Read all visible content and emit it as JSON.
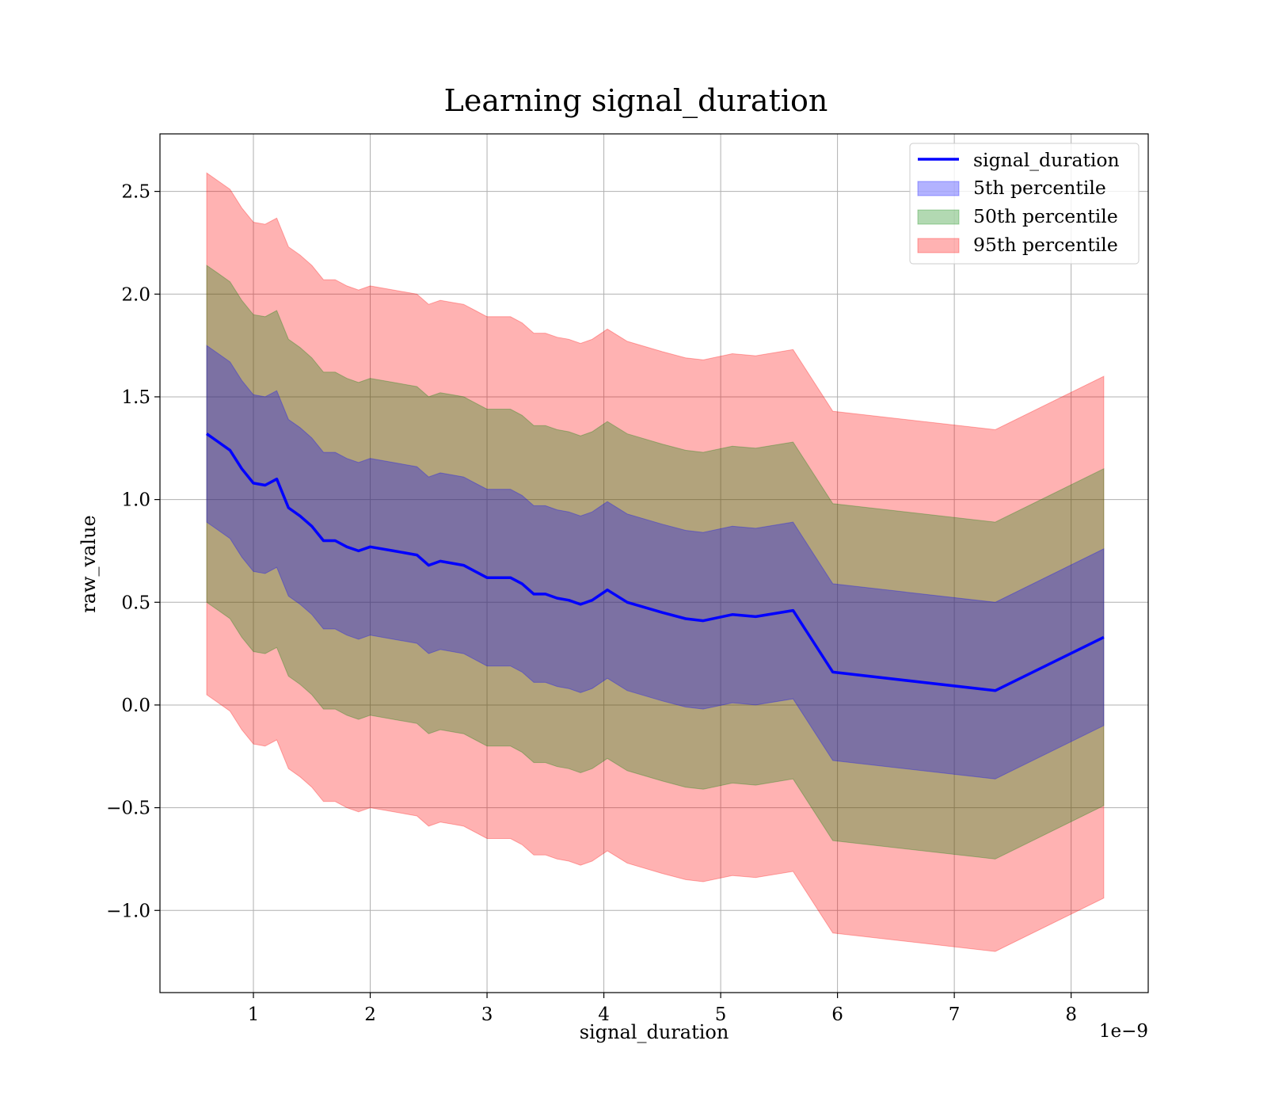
{
  "chart_data": {
    "type": "area",
    "title": "Learning signal_duration",
    "xlabel": "signal_duration",
    "ylabel": "raw_value",
    "x_offset_label": "1e−9",
    "xlim": [
      0.2,
      8.66
    ],
    "ylim": [
      -1.4,
      2.78
    ],
    "x_ticks": [
      1,
      2,
      3,
      4,
      5,
      6,
      7,
      8
    ],
    "x_tick_labels": [
      "1",
      "2",
      "3",
      "4",
      "5",
      "6",
      "7",
      "8"
    ],
    "y_ticks": [
      -1.0,
      -0.5,
      0.0,
      0.5,
      1.0,
      1.5,
      2.0,
      2.5
    ],
    "y_tick_labels": [
      "−1.0",
      "−0.5",
      "0.0",
      "0.5",
      "1.0",
      "1.5",
      "2.0",
      "2.5"
    ],
    "grid": true,
    "legend_position": "top-right",
    "colors": {
      "line": "#0000ff",
      "band_5th": "#0000ff",
      "band_50th": "#008000",
      "band_95th": "#ff0000"
    },
    "x": [
      0.6,
      0.7,
      0.8,
      0.9,
      1.0,
      1.1,
      1.2,
      1.3,
      1.4,
      1.5,
      1.6,
      1.7,
      1.8,
      1.9,
      2.0,
      2.2,
      2.4,
      2.5,
      2.6,
      2.7,
      2.8,
      2.9,
      3.0,
      3.2,
      3.3,
      3.4,
      3.5,
      3.6,
      3.7,
      3.8,
      3.9,
      4.03,
      4.2,
      4.5,
      4.7,
      4.85,
      5.1,
      5.3,
      5.62,
      5.96,
      7.35,
      8.28
    ],
    "series": [
      {
        "name": "signal_duration",
        "kind": "line",
        "values": [
          1.32,
          1.28,
          1.24,
          1.15,
          1.08,
          1.07,
          1.1,
          0.96,
          0.92,
          0.87,
          0.8,
          0.8,
          0.77,
          0.75,
          0.77,
          0.75,
          0.73,
          0.68,
          0.7,
          0.69,
          0.68,
          0.65,
          0.62,
          0.62,
          0.59,
          0.54,
          0.54,
          0.52,
          0.51,
          0.49,
          0.51,
          0.56,
          0.5,
          0.45,
          0.42,
          0.41,
          0.44,
          0.43,
          0.46,
          0.16,
          0.07,
          0.33
        ]
      },
      {
        "name": "5th percentile",
        "kind": "band",
        "half_width": [
          0.43,
          0.43,
          0.43,
          0.43,
          0.43,
          0.43,
          0.43,
          0.43,
          0.43,
          0.43,
          0.43,
          0.43,
          0.43,
          0.43,
          0.43,
          0.43,
          0.43,
          0.43,
          0.43,
          0.43,
          0.43,
          0.43,
          0.43,
          0.43,
          0.43,
          0.43,
          0.43,
          0.43,
          0.43,
          0.43,
          0.43,
          0.43,
          0.43,
          0.43,
          0.43,
          0.43,
          0.43,
          0.43,
          0.43,
          0.43,
          0.43,
          0.43
        ]
      },
      {
        "name": "50th percentile",
        "kind": "band",
        "half_width": [
          0.82,
          0.82,
          0.82,
          0.82,
          0.82,
          0.82,
          0.82,
          0.82,
          0.82,
          0.82,
          0.82,
          0.82,
          0.82,
          0.82,
          0.82,
          0.82,
          0.82,
          0.82,
          0.82,
          0.82,
          0.82,
          0.82,
          0.82,
          0.82,
          0.82,
          0.82,
          0.82,
          0.82,
          0.82,
          0.82,
          0.82,
          0.82,
          0.82,
          0.82,
          0.82,
          0.82,
          0.82,
          0.82,
          0.82,
          0.82,
          0.82,
          0.82
        ]
      },
      {
        "name": "95th percentile",
        "kind": "band",
        "half_width": [
          1.27,
          1.27,
          1.27,
          1.27,
          1.27,
          1.27,
          1.27,
          1.27,
          1.27,
          1.27,
          1.27,
          1.27,
          1.27,
          1.27,
          1.27,
          1.27,
          1.27,
          1.27,
          1.27,
          1.27,
          1.27,
          1.27,
          1.27,
          1.27,
          1.27,
          1.27,
          1.27,
          1.27,
          1.27,
          1.27,
          1.27,
          1.27,
          1.27,
          1.27,
          1.27,
          1.27,
          1.27,
          1.27,
          1.27,
          1.27,
          1.27,
          1.27
        ]
      }
    ]
  }
}
